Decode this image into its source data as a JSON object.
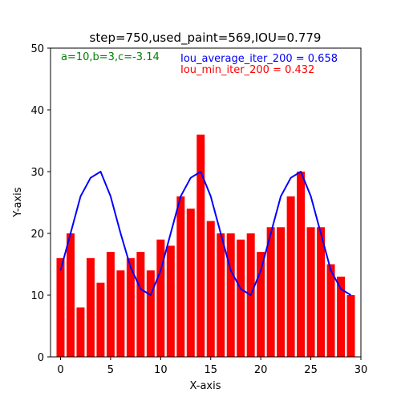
{
  "chart_data": {
    "type": "bar",
    "title": "step=750,used_paint=569,IOU=0.779",
    "xlabel": "X-axis",
    "ylabel": "Y-axis",
    "xlim": [
      -1,
      30
    ],
    "ylim": [
      0,
      50
    ],
    "xticks": [
      0,
      5,
      10,
      15,
      20,
      25,
      30
    ],
    "yticks": [
      0,
      10,
      20,
      30,
      40,
      50
    ],
    "grid": false,
    "bars": {
      "color": "#ff0000",
      "x": [
        0,
        1,
        2,
        3,
        4,
        5,
        6,
        7,
        8,
        9,
        10,
        11,
        12,
        13,
        14,
        15,
        16,
        17,
        18,
        19,
        20,
        21,
        22,
        23,
        24,
        25,
        26,
        27,
        28,
        29
      ],
      "values": [
        16,
        20,
        8,
        16,
        12,
        17,
        14,
        16,
        17,
        14,
        19,
        18,
        26,
        24,
        36,
        22,
        20,
        20,
        19,
        20,
        17,
        21,
        21,
        26,
        30,
        21,
        21,
        15,
        13,
        10
      ]
    },
    "line": {
      "color": "#0000ff",
      "x": [
        0,
        1,
        2,
        3,
        4,
        5,
        6,
        7,
        8,
        9,
        10,
        11,
        12,
        13,
        14,
        15,
        16,
        17,
        18,
        19,
        20,
        21,
        22,
        23,
        24,
        25,
        26,
        27,
        28,
        29
      ],
      "values": [
        14,
        20,
        26,
        29,
        30,
        26,
        20,
        14.5,
        11,
        10,
        14,
        20,
        26,
        29,
        30,
        26,
        20,
        14,
        11,
        10,
        14,
        20,
        26,
        29,
        30,
        26,
        20,
        14,
        11,
        10
      ]
    },
    "annotations": [
      {
        "text": "a=10,b=3,c=-3.14",
        "color": "#008000"
      },
      {
        "text": "Iou_average_iter_200 = 0.658",
        "color": "#0000ff"
      },
      {
        "text": "Iou_min_iter_200 = 0.432",
        "color": "#ff0000"
      }
    ]
  }
}
